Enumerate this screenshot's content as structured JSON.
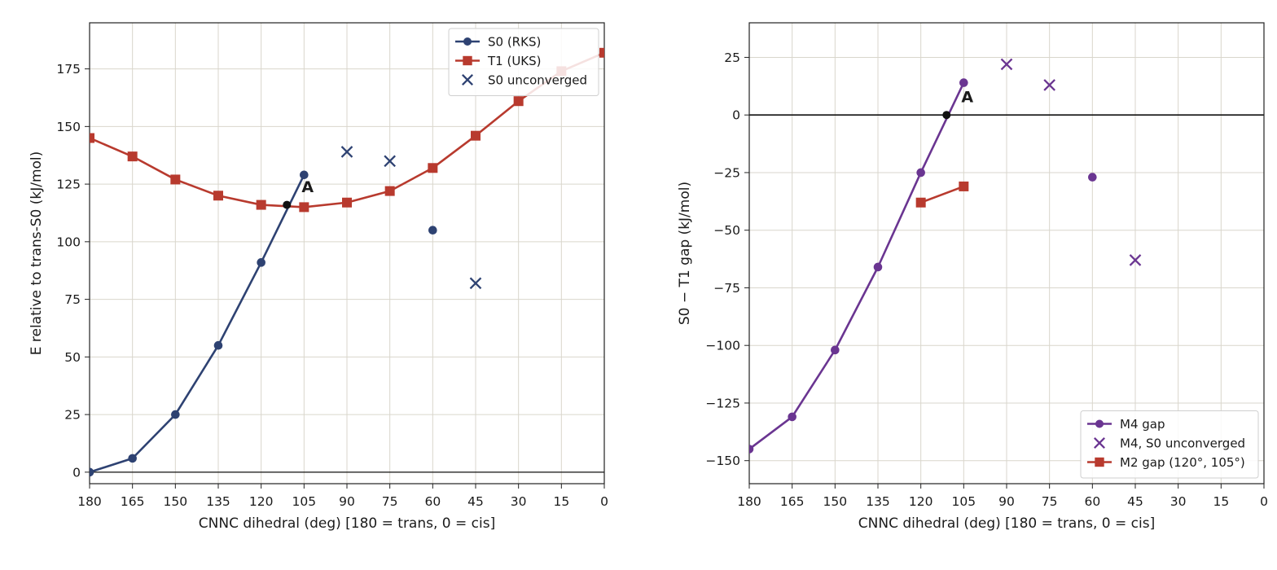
{
  "chart_data": [
    {
      "type": "line",
      "xlabel": "CNNC dihedral (deg)  [180 = trans, 0 = cis]",
      "ylabel": "E relative to trans-S0 (kJ/mol)",
      "xlim": [
        180,
        0
      ],
      "ylim": [
        -5,
        195
      ],
      "x_ticks": [
        180,
        165,
        150,
        135,
        120,
        105,
        90,
        75,
        60,
        45,
        30,
        15,
        0
      ],
      "y_ticks": [
        0,
        25,
        50,
        75,
        100,
        125,
        150,
        175
      ],
      "grid": true,
      "legend_position": "upper right",
      "series": [
        {
          "name": "S0 (RKS)",
          "kind": "line-circle",
          "color": "#2e4272",
          "points": [
            [
              180,
              0
            ],
            [
              165,
              6
            ],
            [
              150,
              25
            ],
            [
              135,
              55
            ],
            [
              120,
              91
            ],
            [
              105,
              129
            ]
          ]
        },
        {
          "name": "",
          "kind": "circle",
          "color": "#2e4272",
          "points": [
            [
              60,
              105
            ]
          ]
        },
        {
          "name": "T1 (UKS)",
          "kind": "line-square",
          "color": "#b83a2e",
          "points": [
            [
              180,
              145
            ],
            [
              165,
              137
            ],
            [
              150,
              127
            ],
            [
              135,
              120
            ],
            [
              120,
              116
            ],
            [
              105,
              115
            ],
            [
              90,
              117
            ],
            [
              75,
              122
            ],
            [
              60,
              132
            ],
            [
              45,
              146
            ],
            [
              30,
              161
            ],
            [
              15,
              174
            ],
            [
              0,
              182
            ]
          ]
        },
        {
          "name": "S0 unconverged",
          "kind": "x",
          "color": "#2e4272",
          "points": [
            [
              90,
              139
            ],
            [
              75,
              135
            ],
            [
              45,
              82
            ]
          ]
        }
      ],
      "crossing_point": [
        111,
        116
      ],
      "annotations": [
        {
          "text": "A",
          "x": 105,
          "y": 124
        }
      ]
    },
    {
      "type": "line",
      "xlabel": "CNNC dihedral (deg)  [180 = trans, 0 = cis]",
      "ylabel": "S0 − T1 gap (kJ/mol)",
      "xlim": [
        180,
        0
      ],
      "ylim": [
        -160,
        40
      ],
      "x_ticks": [
        180,
        165,
        150,
        135,
        120,
        105,
        90,
        75,
        60,
        45,
        30,
        15,
        0
      ],
      "y_ticks": [
        25,
        0,
        -25,
        -50,
        -75,
        -100,
        -125,
        -150
      ],
      "grid": true,
      "legend_position": "lower right",
      "series": [
        {
          "name": "M4 gap",
          "kind": "line-circle",
          "color": "#6a3591",
          "points": [
            [
              180,
              -145
            ],
            [
              165,
              -131
            ],
            [
              150,
              -102
            ],
            [
              135,
              -66
            ],
            [
              120,
              -25
            ],
            [
              105,
              14
            ]
          ]
        },
        {
          "name": "",
          "kind": "circle",
          "color": "#6a3591",
          "points": [
            [
              60,
              -27
            ]
          ]
        },
        {
          "name": "M4, S0 unconverged",
          "kind": "x",
          "color": "#6a3591",
          "points": [
            [
              90,
              22
            ],
            [
              75,
              13
            ],
            [
              45,
              -63
            ]
          ]
        },
        {
          "name": "M2 gap (120°, 105°)",
          "kind": "line-square",
          "color": "#b83a2e",
          "points": [
            [
              120,
              -38
            ],
            [
              105,
              -31
            ]
          ]
        }
      ],
      "crossing_point": [
        111,
        0
      ],
      "annotations": [
        {
          "text": "A",
          "x": 105,
          "y": 8
        }
      ]
    }
  ]
}
